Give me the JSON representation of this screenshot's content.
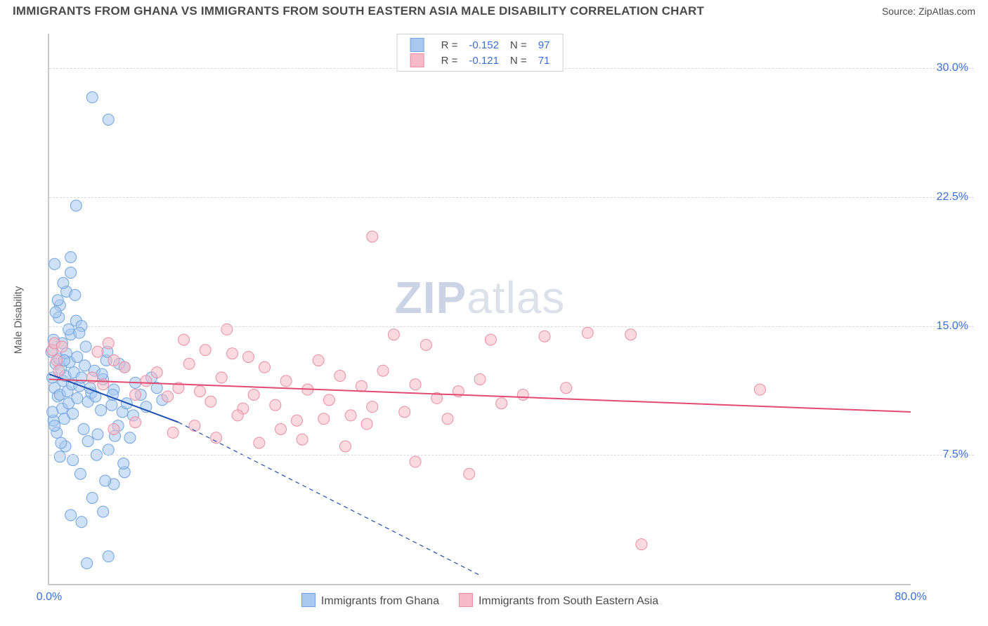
{
  "title": "IMMIGRANTS FROM GHANA VS IMMIGRANTS FROM SOUTH EASTERN ASIA MALE DISABILITY CORRELATION CHART",
  "source_label": "Source: ",
  "source_name": "ZipAtlas.com",
  "watermark_a": "ZIP",
  "watermark_b": "atlas",
  "axes": {
    "y_label": "Male Disability",
    "x_min": 0.0,
    "x_max": 80.0,
    "y_min": 0.0,
    "y_max": 32.0,
    "y_ticks": [
      {
        "v": 7.5,
        "label": "7.5%"
      },
      {
        "v": 15.0,
        "label": "15.0%"
      },
      {
        "v": 22.5,
        "label": "22.5%"
      },
      {
        "v": 30.0,
        "label": "30.0%"
      }
    ],
    "x_ticks": [
      {
        "v": 0.0,
        "label": "0.0%"
      },
      {
        "v": 80.0,
        "label": "80.0%"
      }
    ],
    "grid_color": "#d9d9d9"
  },
  "style": {
    "marker_radius": 8,
    "marker_opacity": 0.55,
    "line_width": 2,
    "dash_pattern": "6,5"
  },
  "series": [
    {
      "key": "ghana",
      "label": "Immigrants from Ghana",
      "color_fill": "#a8c8f0",
      "color_stroke": "#6fa3e0",
      "line_color": "#1f4fb0",
      "trend": {
        "x1": 0,
        "y1": 12.2,
        "x2": 12,
        "y2": 9.4,
        "extend_x": 40,
        "extend_y": 0.5
      },
      "stats": {
        "R": "-0.152",
        "N": "97"
      },
      "points": [
        [
          0.3,
          12.0
        ],
        [
          0.5,
          11.4
        ],
        [
          0.6,
          12.8
        ],
        [
          0.8,
          10.9
        ],
        [
          0.9,
          13.1
        ],
        [
          1.0,
          11.0
        ],
        [
          1.1,
          12.5
        ],
        [
          1.2,
          10.2
        ],
        [
          1.3,
          11.8
        ],
        [
          1.4,
          9.6
        ],
        [
          1.5,
          12.1
        ],
        [
          1.6,
          13.4
        ],
        [
          1.7,
          11.2
        ],
        [
          1.8,
          10.5
        ],
        [
          1.9,
          12.9
        ],
        [
          2.0,
          14.5
        ],
        [
          2.1,
          11.6
        ],
        [
          2.2,
          9.9
        ],
        [
          2.3,
          12.3
        ],
        [
          2.5,
          15.3
        ],
        [
          2.6,
          10.8
        ],
        [
          2.8,
          11.5
        ],
        [
          3.0,
          12.0
        ],
        [
          3.2,
          9.0
        ],
        [
          3.4,
          13.8
        ],
        [
          3.6,
          10.6
        ],
        [
          3.9,
          11.1
        ],
        [
          4.2,
          12.4
        ],
        [
          4.5,
          8.7
        ],
        [
          4.8,
          10.1
        ],
        [
          5.0,
          11.9
        ],
        [
          5.3,
          13.0
        ],
        [
          5.5,
          7.8
        ],
        [
          5.8,
          10.4
        ],
        [
          6.0,
          11.3
        ],
        [
          6.4,
          9.2
        ],
        [
          6.8,
          10.0
        ],
        [
          7.0,
          12.6
        ],
        [
          7.5,
          8.5
        ],
        [
          8.0,
          11.7
        ],
        [
          1.0,
          16.2
        ],
        [
          1.6,
          17.0
        ],
        [
          2.0,
          18.1
        ],
        [
          0.9,
          15.5
        ],
        [
          2.4,
          16.8
        ],
        [
          3.0,
          15.0
        ],
        [
          1.2,
          14.0
        ],
        [
          2.8,
          14.6
        ],
        [
          2.5,
          22.0
        ],
        [
          4.0,
          28.3
        ],
        [
          5.5,
          27.0
        ],
        [
          2.0,
          19.0
        ],
        [
          2.0,
          4.0
        ],
        [
          3.0,
          3.6
        ],
        [
          4.0,
          5.0
        ],
        [
          5.0,
          4.2
        ],
        [
          6.0,
          5.8
        ],
        [
          7.0,
          6.5
        ],
        [
          5.5,
          1.6
        ],
        [
          3.5,
          1.2
        ],
        [
          1.5,
          8.0
        ],
        [
          2.2,
          7.2
        ],
        [
          2.9,
          6.4
        ],
        [
          3.6,
          8.3
        ],
        [
          4.4,
          7.5
        ],
        [
          5.2,
          6.0
        ],
        [
          6.1,
          8.6
        ],
        [
          6.9,
          7.0
        ],
        [
          8.5,
          11.0
        ],
        [
          9.0,
          10.3
        ],
        [
          9.5,
          12.0
        ],
        [
          10.0,
          11.4
        ],
        [
          10.5,
          10.7
        ],
        [
          0.4,
          9.5
        ],
        [
          0.7,
          8.8
        ],
        [
          1.1,
          8.2
        ],
        [
          0.2,
          13.5
        ],
        [
          0.4,
          14.2
        ],
        [
          0.6,
          15.8
        ],
        [
          0.3,
          10.0
        ],
        [
          0.5,
          9.2
        ],
        [
          1.0,
          7.4
        ],
        [
          1.4,
          13.0
        ],
        [
          1.8,
          14.8
        ],
        [
          0.8,
          16.5
        ],
        [
          1.3,
          17.5
        ],
        [
          0.5,
          18.6
        ],
        [
          2.6,
          13.2
        ],
        [
          3.3,
          12.7
        ],
        [
          3.8,
          11.4
        ],
        [
          4.3,
          10.9
        ],
        [
          4.9,
          12.2
        ],
        [
          5.4,
          13.5
        ],
        [
          5.9,
          11.0
        ],
        [
          6.5,
          12.8
        ],
        [
          7.2,
          10.5
        ],
        [
          7.8,
          9.8
        ]
      ]
    },
    {
      "key": "sea",
      "label": "Immigrants from South Eastern Asia",
      "color_fill": "#f6b9c6",
      "color_stroke": "#ea8fa3",
      "line_color": "#e24a72",
      "trend": {
        "x1": 0,
        "y1": 11.9,
        "x2": 80,
        "y2": 10.0
      },
      "stats": {
        "R": "-0.121",
        "N": "71"
      },
      "points": [
        [
          0.3,
          13.6
        ],
        [
          0.5,
          14.0
        ],
        [
          0.7,
          13.0
        ],
        [
          0.9,
          12.4
        ],
        [
          1.2,
          13.8
        ],
        [
          4.0,
          12.0
        ],
        [
          5.0,
          11.6
        ],
        [
          6.0,
          13.0
        ],
        [
          7.0,
          12.6
        ],
        [
          8.0,
          11.0
        ],
        [
          9.0,
          11.8
        ],
        [
          10.0,
          12.3
        ],
        [
          11.0,
          10.9
        ],
        [
          12.0,
          11.4
        ],
        [
          13.0,
          12.8
        ],
        [
          14.0,
          11.2
        ],
        [
          15.0,
          10.6
        ],
        [
          16.0,
          12.0
        ],
        [
          17.0,
          13.4
        ],
        [
          18.0,
          10.2
        ],
        [
          19.0,
          11.0
        ],
        [
          20.0,
          12.6
        ],
        [
          21.0,
          10.4
        ],
        [
          22.0,
          11.8
        ],
        [
          23.0,
          9.5
        ],
        [
          24.0,
          11.3
        ],
        [
          25.0,
          13.0
        ],
        [
          26.0,
          10.7
        ],
        [
          27.0,
          12.1
        ],
        [
          28.0,
          9.8
        ],
        [
          29.0,
          11.5
        ],
        [
          30.0,
          10.3
        ],
        [
          31.0,
          12.4
        ],
        [
          32.0,
          14.5
        ],
        [
          33.0,
          10.0
        ],
        [
          34.0,
          11.6
        ],
        [
          35.0,
          13.9
        ],
        [
          36.0,
          10.8
        ],
        [
          37.0,
          9.6
        ],
        [
          38.0,
          11.2
        ],
        [
          39.0,
          6.4
        ],
        [
          40.0,
          11.9
        ],
        [
          41.0,
          14.2
        ],
        [
          42.0,
          10.5
        ],
        [
          44.0,
          11.0
        ],
        [
          46.0,
          14.4
        ],
        [
          48.0,
          11.4
        ],
        [
          50.0,
          14.6
        ],
        [
          54.0,
          14.5
        ],
        [
          66.0,
          11.3
        ],
        [
          30.0,
          20.2
        ],
        [
          34.0,
          7.1
        ],
        [
          55.0,
          2.3
        ],
        [
          6.0,
          9.0
        ],
        [
          8.0,
          9.4
        ],
        [
          11.5,
          8.8
        ],
        [
          13.5,
          9.2
        ],
        [
          15.5,
          8.5
        ],
        [
          17.5,
          9.8
        ],
        [
          19.5,
          8.2
        ],
        [
          21.5,
          9.0
        ],
        [
          23.5,
          8.4
        ],
        [
          25.5,
          9.6
        ],
        [
          27.5,
          8.0
        ],
        [
          29.5,
          9.3
        ],
        [
          4.5,
          13.5
        ],
        [
          5.5,
          14.0
        ],
        [
          12.5,
          14.2
        ],
        [
          14.5,
          13.6
        ],
        [
          16.5,
          14.8
        ],
        [
          18.5,
          13.2
        ]
      ]
    }
  ],
  "legend_top": {
    "cols": [
      "R =",
      "N ="
    ]
  },
  "legend_bottom": {}
}
